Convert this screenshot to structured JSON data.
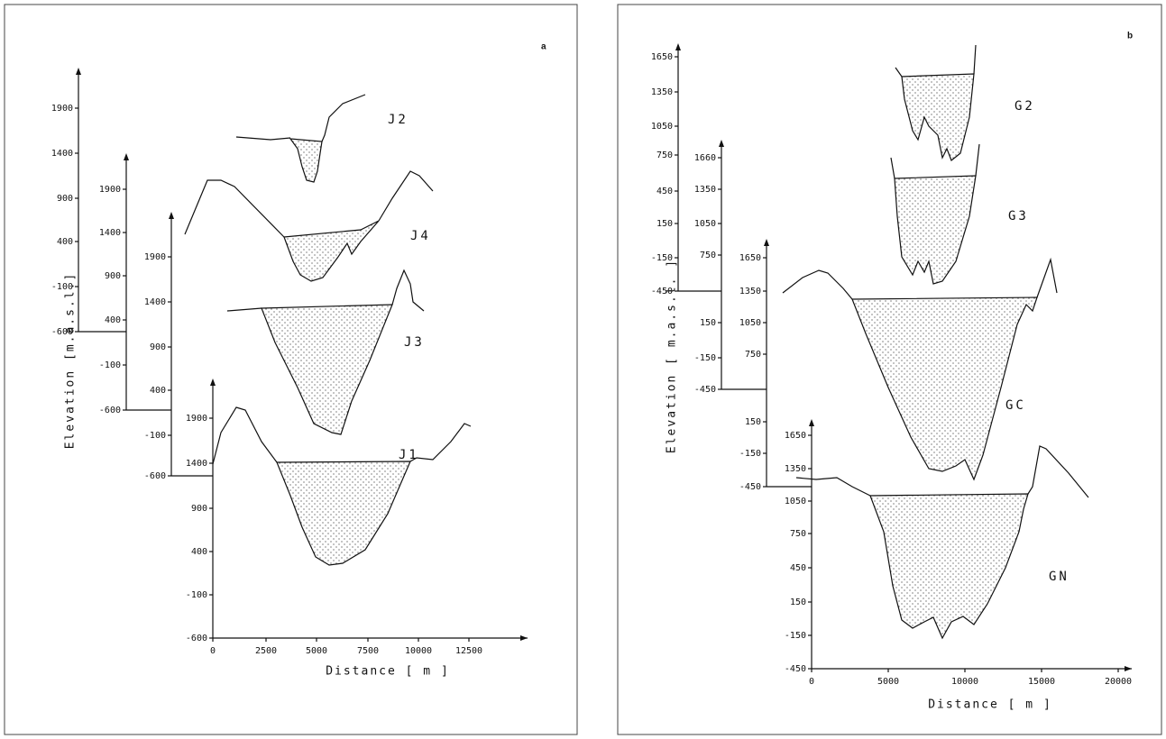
{
  "panels": [
    {
      "label": "a",
      "y_axis_label": "Elevation [m.a.s.l.]",
      "x_axis_label": "Distance [ m ]",
      "y_axes": [
        {
          "profile": "J2",
          "ticks": [
            1900,
            1400,
            900,
            400,
            -100,
            -600
          ]
        },
        {
          "profile": "J4",
          "ticks": [
            1900,
            1400,
            900,
            400,
            -100,
            -600
          ]
        },
        {
          "profile": "J3",
          "ticks": [
            1900,
            1400,
            900,
            400,
            -100,
            -600
          ]
        },
        {
          "profile": "J1",
          "ticks": [
            1900,
            1400,
            900,
            400,
            -100,
            -600
          ]
        }
      ],
      "x_ticks": [
        0,
        2500,
        5000,
        7500,
        10000,
        12500
      ]
    },
    {
      "label": "b",
      "y_axis_label": "Elevation [ m.a.s.l. ]",
      "x_axis_label": "Distance [ m ]",
      "y_axes": [
        {
          "profile": "G2",
          "ticks": [
            1650,
            1350,
            1050,
            750,
            450,
            150,
            -150,
            -450
          ]
        },
        {
          "profile": "G3",
          "ticks": [
            1660,
            1350,
            1050,
            750,
            150,
            -150,
            -450
          ]
        },
        {
          "profile": "GC",
          "ticks": [
            1650,
            1350,
            1050,
            750,
            150,
            -150,
            -450
          ]
        },
        {
          "profile": "GN",
          "ticks": [
            1650,
            1350,
            1050,
            750,
            450,
            150,
            -150,
            -450
          ]
        }
      ],
      "x_ticks": [
        0,
        5000,
        10000,
        15000,
        20000
      ]
    }
  ]
}
